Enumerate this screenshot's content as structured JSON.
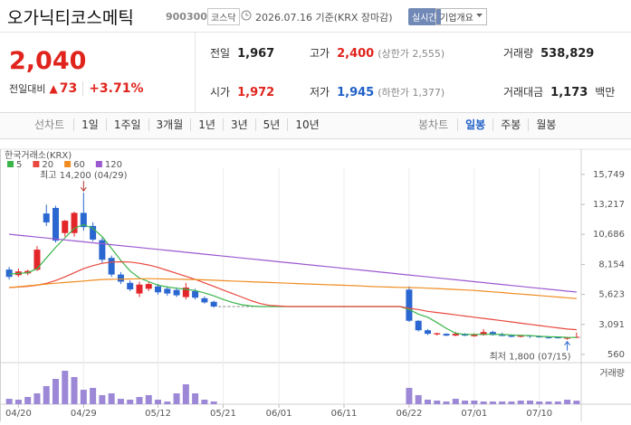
{
  "header": {
    "name": "오가닉티코스메틱",
    "code": "900300",
    "market": "코스닥",
    "date": "2026.07.16 기준(KRX 장마감)",
    "realtime": "실시간",
    "company_info": "기업개요"
  },
  "price": {
    "current": "2,040",
    "change_label": "전일대비",
    "change_arrow": "▲",
    "change": "73",
    "change_rate": "+3.71%"
  },
  "stats": [
    {
      "label": "전일",
      "value": "1,967"
    },
    {
      "label": "고가",
      "value": "2,400",
      "note": "(상한가 2,555)"
    },
    {
      "label": "거래량",
      "value": "538,829"
    },
    {
      "label": "시가",
      "value": "1,972"
    },
    {
      "label": "저가",
      "value": "1,945",
      "note": "(하한가 1,377)"
    },
    {
      "label": "거래대금",
      "value": "1,173",
      "unit": "백만"
    }
  ],
  "tabs": {
    "line": {
      "label": "선차트",
      "items": [
        "1일",
        "1주일",
        "3개월",
        "1년",
        "3년",
        "5년",
        "10년"
      ]
    },
    "candle": {
      "label": "봉차트",
      "items": [
        "일봉",
        "주봉",
        "월봉"
      ],
      "active": 0
    }
  },
  "chart_data": {
    "type": "candlestick",
    "source": "한국거래소(KRX)",
    "categories": [
      null,
      "04/20",
      null,
      null,
      null,
      null,
      null,
      null,
      "04/29",
      null,
      null,
      null,
      null,
      null,
      null,
      null,
      "05/12",
      null,
      null,
      null,
      null,
      null,
      null,
      "05/21",
      null,
      null,
      null,
      null,
      null,
      "06/01",
      null,
      null,
      null,
      null,
      null,
      null,
      "06/11",
      null,
      null,
      null,
      null,
      null,
      null,
      "06/22",
      null,
      null,
      null,
      null,
      null,
      null,
      "07/01",
      null,
      null,
      null,
      null,
      null,
      null,
      "07/10",
      null,
      null,
      null,
      null
    ],
    "open": [
      7720,
      7250,
      7400,
      7700,
      12450,
      12920,
      10800,
      10800,
      12500,
      11400,
      10200,
      8700,
      7300,
      6600,
      5700,
      6100,
      6300,
      6100,
      6000,
      5400,
      5900,
      5300,
      5000,
      4600,
      4600,
      4600,
      4600,
      4600,
      4600,
      4600,
      4600,
      4600,
      4600,
      4600,
      4600,
      4600,
      4600,
      4600,
      4600,
      4600,
      4600,
      4600,
      4600,
      6030,
      3400,
      2600,
      2250,
      2300,
      2150,
      2300,
      2100,
      2200,
      2450,
      2200,
      2150,
      2050,
      2150,
      2100,
      2000,
      2000,
      1950,
      1972
    ],
    "high": [
      7950,
      7800,
      7700,
      9700,
      13200,
      13100,
      11900,
      12600,
      14200,
      11700,
      10400,
      8900,
      7500,
      6800,
      6700,
      6650,
      6500,
      6300,
      6200,
      6600,
      6100,
      5450,
      5100,
      4600,
      4600,
      4600,
      4600,
      4600,
      4600,
      4600,
      4600,
      4600,
      4600,
      4600,
      4600,
      4600,
      4600,
      4600,
      4600,
      4600,
      4600,
      4600,
      4600,
      6300,
      3450,
      2700,
      2400,
      2350,
      2450,
      2350,
      2350,
      2700,
      2550,
      2400,
      2250,
      2200,
      2200,
      2150,
      2100,
      2050,
      2000,
      2400
    ],
    "low": [
      6880,
      7100,
      7250,
      7600,
      11400,
      10000,
      10500,
      10500,
      11000,
      10100,
      8300,
      7100,
      6500,
      5900,
      5400,
      5900,
      5600,
      5500,
      5400,
      5200,
      5200,
      4850,
      4500,
      4600,
      4600,
      4600,
      4600,
      4600,
      4600,
      4600,
      4600,
      4600,
      4600,
      4600,
      4600,
      4600,
      4600,
      4600,
      4600,
      4600,
      4600,
      4600,
      4600,
      3300,
      2500,
      2200,
      2150,
      2100,
      2100,
      2100,
      2050,
      2150,
      2150,
      2100,
      2000,
      2000,
      1950,
      1980,
      1900,
      1900,
      1800,
      1945
    ],
    "close": [
      7100,
      7560,
      7600,
      9400,
      11700,
      10160,
      11840,
      12500,
      11300,
      10250,
      8550,
      7300,
      6700,
      6050,
      6450,
      6500,
      5800,
      5700,
      5550,
      6200,
      5350,
      4950,
      4600,
      4600,
      4600,
      4600,
      4600,
      4600,
      4600,
      4600,
      4600,
      4600,
      4600,
      4600,
      4600,
      4600,
      4600,
      4600,
      4600,
      4600,
      4600,
      4600,
      4600,
      3400,
      2600,
      2300,
      2350,
      2150,
      2300,
      2150,
      2250,
      2450,
      2200,
      2150,
      2050,
      2150,
      2100,
      2000,
      1950,
      1950,
      1967,
      2040
    ],
    "up_color": "#e3262a",
    "down_color": "#2a67d0",
    "halt_color": "#8a8a8a",
    "series": [
      {
        "name": "5",
        "color": "#3bb54a",
        "values": [
          7330,
          7400,
          7450,
          7800,
          8700,
          9600,
          10400,
          11200,
          11500,
          11200,
          10500,
          9500,
          8500,
          7600,
          7000,
          6700,
          6400,
          6250,
          6150,
          6050,
          5950,
          5750,
          5500,
          5200,
          4950,
          4750,
          4650,
          4600,
          4600,
          4600,
          4600,
          4600,
          4600,
          4600,
          4600,
          4600,
          4600,
          4600,
          4600,
          4600,
          4600,
          4600,
          4600,
          4360,
          3960,
          3700,
          3250,
          2760,
          2350,
          2250,
          2240,
          2260,
          2260,
          2240,
          2200,
          2170,
          2150,
          2090,
          2050,
          2040,
          2000,
          1990
        ]
      },
      {
        "name": "20",
        "color": "#e8483d",
        "values": [
          6200,
          6250,
          6300,
          6400,
          6550,
          6800,
          7100,
          7450,
          7800,
          8050,
          8250,
          8350,
          8380,
          8350,
          8250,
          8100,
          7900,
          7650,
          7400,
          7150,
          6900,
          6600,
          6300,
          6000,
          5700,
          5400,
          5100,
          4850,
          4700,
          4650,
          4600,
          4600,
          4600,
          4600,
          4600,
          4600,
          4600,
          4600,
          4600,
          4600,
          4600,
          4600,
          4600,
          4450,
          4350,
          4200,
          4100,
          4000,
          3900,
          3800,
          3700,
          3600,
          3500,
          3400,
          3300,
          3200,
          3100,
          3000,
          2900,
          2800,
          2700,
          2650
        ]
      },
      {
        "name": "60",
        "color": "#f08c20",
        "values": [
          6200,
          6270,
          6350,
          6420,
          6500,
          6570,
          6630,
          6690,
          6750,
          6820,
          6880,
          6900,
          6910,
          6930,
          6940,
          6950,
          6940,
          6920,
          6910,
          6890,
          6880,
          6850,
          6820,
          6780,
          6750,
          6720,
          6690,
          6660,
          6630,
          6600,
          6570,
          6540,
          6510,
          6480,
          6450,
          6420,
          6390,
          6360,
          6330,
          6290,
          6260,
          6240,
          6220,
          6200,
          6190,
          6150,
          6120,
          6080,
          6040,
          6000,
          5960,
          5900,
          5840,
          5780,
          5710,
          5650,
          5590,
          5530,
          5460,
          5400,
          5340,
          5270
        ]
      },
      {
        "name": "120",
        "color": "#9b59d0",
        "values": [
          10700,
          10620,
          10540,
          10460,
          10380,
          10300,
          10220,
          10140,
          10060,
          9980,
          9900,
          9820,
          9740,
          9660,
          9580,
          9500,
          9420,
          9340,
          9260,
          9180,
          9100,
          9020,
          8940,
          8860,
          8780,
          8700,
          8620,
          8540,
          8460,
          8380,
          8300,
          8220,
          8140,
          8060,
          7980,
          7900,
          7820,
          7740,
          7660,
          7580,
          7500,
          7420,
          7340,
          7260,
          7180,
          7100,
          7020,
          6940,
          6860,
          6780,
          6700,
          6620,
          6540,
          6460,
          6380,
          6300,
          6220,
          6140,
          6060,
          5980,
          5900,
          5820
        ]
      }
    ],
    "ylim": [
      100,
      16500
    ],
    "yticks": [
      {
        "value": 15749,
        "label": "15,749"
      },
      {
        "value": 13217,
        "label": "13,217"
      },
      {
        "value": 10686,
        "label": "10,686"
      },
      {
        "value": 8154,
        "label": "8,154"
      },
      {
        "value": 5623,
        "label": "5,623"
      },
      {
        "value": 3091,
        "label": "3,091"
      },
      560
    ],
    "high_label": "최고 14,200 (04/29)",
    "low_label": "최저 1,800 (07/15)",
    "volume": {
      "label": "거래량",
      "color": "#9c88d6",
      "ylim": [
        0,
        5500000
      ],
      "values": [
        820000,
        690000,
        1100000,
        1650000,
        2750000,
        3850000,
        5090000,
        4130000,
        2200000,
        2480000,
        1380000,
        1650000,
        820000,
        690000,
        1100000,
        1380000,
        690000,
        410000,
        1650000,
        3030000,
        1650000,
        690000,
        410000,
        0,
        0,
        0,
        0,
        0,
        0,
        0,
        0,
        0,
        0,
        0,
        0,
        0,
        0,
        0,
        0,
        0,
        0,
        0,
        0,
        2480000,
        1380000,
        690000,
        550000,
        410000,
        820000,
        550000,
        550000,
        410000,
        410000,
        410000,
        410000,
        550000,
        550000,
        410000,
        410000,
        410000,
        690000,
        538829
      ]
    }
  }
}
